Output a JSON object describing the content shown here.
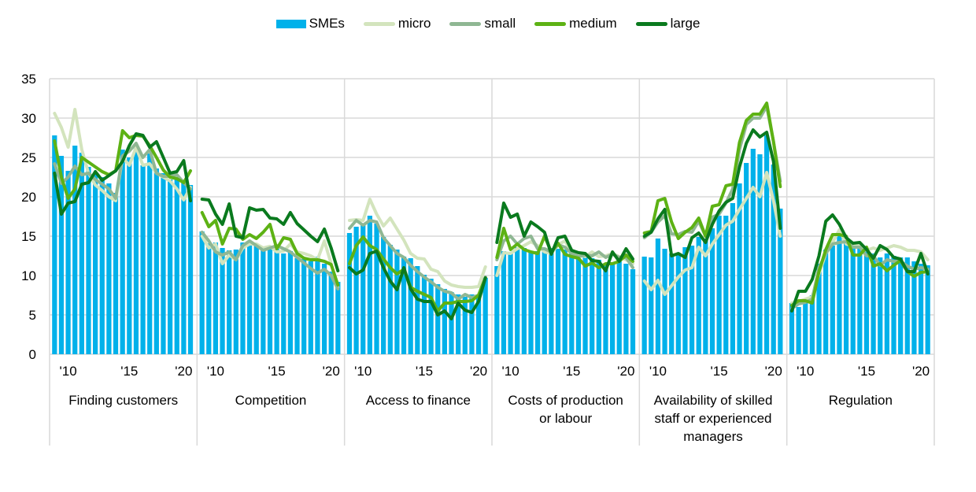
{
  "chart_data": {
    "type": "bar",
    "title": "",
    "xlabel": "",
    "ylabel": "",
    "ylim": [
      0,
      35
    ],
    "yticks": [
      "0",
      "5",
      "10",
      "15",
      "20",
      "25",
      "30",
      "35"
    ],
    "grid": true,
    "legend_position": "top",
    "colors": {
      "SMEs": "#00b1ea",
      "micro": "#d3e4bd",
      "small": "#8fb793",
      "medium": "#5db214",
      "large": "#0a7a1e",
      "grid": "#d9d9d9"
    },
    "legend": [
      {
        "name": "SMEs",
        "kind": "bar"
      },
      {
        "name": "micro",
        "kind": "line"
      },
      {
        "name": "small",
        "kind": "line"
      },
      {
        "name": "medium",
        "kind": "line"
      },
      {
        "name": "large",
        "kind": "line"
      }
    ],
    "x_tick_labels": [
      "'10",
      "'15",
      "'20"
    ],
    "panels": [
      {
        "label_lines": [
          "Finding customers"
        ],
        "series": {
          "SMEs": [
            27.8,
            25.2,
            23.3,
            26.5,
            25.6,
            23.8,
            23.0,
            22.5,
            21.7,
            20.5,
            26.0,
            25.0,
            26.5,
            24.0,
            25.5,
            23.6,
            23.0,
            22.2,
            22.5,
            21.8,
            21.5
          ],
          "micro": [
            30.6,
            28.8,
            26.3,
            31.1,
            26.0,
            23.0,
            21.5,
            20.8,
            20.0,
            19.5,
            25.0,
            24.0,
            26.3,
            24.0,
            24.2,
            23.0,
            22.5,
            22.0,
            21.0,
            19.6,
            21.2
          ],
          "small": [
            24.2,
            21.7,
            22.5,
            23.9,
            22.8,
            23.0,
            22.2,
            21.6,
            21.0,
            19.8,
            25.2,
            25.8,
            26.8,
            25.0,
            26.0,
            23.0,
            22.6,
            22.6,
            22.8,
            21.8,
            21.0
          ],
          "medium": [
            27.1,
            22.5,
            19.8,
            21.0,
            25.0,
            24.4,
            23.8,
            23.2,
            22.8,
            23.3,
            28.4,
            27.5,
            27.8,
            27.7,
            26.5,
            25.0,
            23.4,
            22.5,
            22.3,
            21.8,
            23.3
          ],
          "large": [
            23.0,
            17.8,
            19.2,
            19.4,
            21.6,
            21.8,
            23.2,
            22.1,
            22.7,
            23.3,
            24.5,
            26.5,
            28.0,
            27.8,
            26.3,
            27.0,
            25.0,
            23.0,
            23.2,
            24.6,
            19.5
          ]
        }
      },
      {
        "label_lines": [
          "Competition"
        ],
        "series": {
          "SMEs": [
            15.6,
            14.1,
            14.2,
            13.5,
            13.2,
            13.3,
            14.2,
            14.0,
            13.9,
            13.3,
            13.8,
            13.4,
            12.8,
            13.1,
            12.2,
            12.1,
            11.8,
            12.4,
            11.5,
            10.5,
            9.2
          ],
          "micro": [
            15.0,
            13.5,
            14.0,
            11.5,
            12.6,
            12.0,
            13.5,
            14.0,
            14.0,
            13.5,
            13.7,
            13.0,
            13.1,
            14.0,
            13.0,
            12.8,
            12.5,
            12.0,
            14.4,
            11.5,
            8.5
          ],
          "small": [
            15.5,
            14.4,
            13.0,
            12.6,
            13.0,
            12.0,
            13.8,
            14.4,
            13.8,
            13.2,
            13.5,
            13.8,
            13.4,
            13.0,
            12.3,
            11.6,
            10.9,
            10.3,
            10.8,
            10.0,
            8.3
          ],
          "medium": [
            18.0,
            16.2,
            17.0,
            14.0,
            16.0,
            15.9,
            14.6,
            15.2,
            14.7,
            15.5,
            16.5,
            13.4,
            14.8,
            14.6,
            12.8,
            12.2,
            12.0,
            12.0,
            11.8,
            11.4,
            8.8
          ],
          "large": [
            19.7,
            19.6,
            17.8,
            16.5,
            19.1,
            15.0,
            14.8,
            18.6,
            18.3,
            18.4,
            17.3,
            17.2,
            16.5,
            18.0,
            16.6,
            15.8,
            15.0,
            14.3,
            15.9,
            13.5,
            10.6
          ]
        }
      },
      {
        "label_lines": [
          "Access to finance"
        ],
        "series": {
          "SMEs": [
            15.4,
            16.2,
            16.6,
            17.6,
            16.6,
            14.9,
            13.9,
            13.3,
            12.4,
            12.2,
            11.2,
            10.1,
            9.6,
            8.9,
            8.3,
            7.9,
            7.6,
            7.3,
            7.6,
            7.4,
            9.7
          ],
          "micro": [
            17.0,
            17.1,
            17.0,
            19.7,
            17.8,
            16.3,
            17.3,
            15.9,
            14.5,
            12.8,
            12.2,
            12.1,
            10.8,
            10.5,
            9.3,
            8.8,
            8.6,
            8.5,
            8.5,
            8.6,
            11.1
          ],
          "small": [
            16.0,
            17.0,
            16.4,
            17.0,
            16.8,
            14.8,
            13.8,
            12.8,
            12.3,
            11.3,
            10.5,
            9.8,
            9.2,
            8.5,
            8.0,
            7.8,
            7.0,
            7.6,
            7.2,
            7.5,
            9.8
          ],
          "medium": [
            11.5,
            13.8,
            14.9,
            13.8,
            13.3,
            12.1,
            11.0,
            10.2,
            10.8,
            8.5,
            8.0,
            7.6,
            7.2,
            5.5,
            6.5,
            6.5,
            6.7,
            6.7,
            6.8,
            7.5,
            9.7
          ],
          "large": [
            11.0,
            10.2,
            10.7,
            12.8,
            13.1,
            11.0,
            9.3,
            8.2,
            11.0,
            8.3,
            7.0,
            6.7,
            6.7,
            5.0,
            5.5,
            4.5,
            6.5,
            5.6,
            5.3,
            6.7,
            9.7
          ]
        }
      },
      {
        "label_lines": [
          "Costs of production",
          "or labour"
        ],
        "series": {
          "SMEs": [
            11.2,
            13.1,
            12.8,
            13.6,
            13.5,
            13.1,
            13.1,
            13.4,
            13.5,
            13.4,
            13.3,
            12.8,
            12.2,
            12.3,
            12.2,
            12.0,
            11.5,
            11.5,
            12.2,
            11.5,
            10.8
          ],
          "micro": [
            10.0,
            12.9,
            12.8,
            13.4,
            13.8,
            14.3,
            13.8,
            13.0,
            12.8,
            13.9,
            14.4,
            13.0,
            12.7,
            12.4,
            13.0,
            12.4,
            12.5,
            12.8,
            12.4,
            12.0,
            11.5
          ],
          "small": [
            12.0,
            14.4,
            15.0,
            14.0,
            14.7,
            15.0,
            13.4,
            13.4,
            13.0,
            13.9,
            13.6,
            12.8,
            12.4,
            12.6,
            12.5,
            13.0,
            12.3,
            12.7,
            12.3,
            12.3,
            11.0
          ],
          "medium": [
            12.3,
            16.0,
            13.3,
            14.0,
            13.3,
            13.0,
            12.8,
            15.0,
            13.0,
            14.1,
            12.7,
            12.4,
            12.2,
            11.2,
            11.6,
            11.0,
            11.5,
            11.5,
            11.8,
            12.6,
            11.8
          ],
          "large": [
            14.2,
            19.2,
            17.4,
            17.8,
            15.0,
            16.8,
            16.2,
            15.5,
            12.7,
            14.8,
            15.0,
            13.2,
            12.9,
            12.8,
            11.9,
            11.8,
            10.6,
            13.0,
            11.8,
            13.4,
            12.1
          ]
        }
      },
      {
        "label_lines": [
          "Availability of skilled",
          "staff or experienced",
          "managers"
        ],
        "series": {
          "SMEs": [
            12.4,
            12.3,
            14.7,
            13.4,
            12.8,
            12.7,
            13.6,
            13.8,
            14.9,
            14.7,
            16.0,
            17.6,
            17.6,
            19.2,
            21.7,
            24.3,
            26.1,
            25.4,
            27.8,
            24.1,
            18.5
          ],
          "micro": [
            9.3,
            8.2,
            9.4,
            7.6,
            8.7,
            9.8,
            10.7,
            11.0,
            13.6,
            12.5,
            14.0,
            15.2,
            16.4,
            16.9,
            18.4,
            19.8,
            21.2,
            20.0,
            23.1,
            19.5,
            15.0
          ],
          "small": [
            14.8,
            15.5,
            16.8,
            17.6,
            15.3,
            15.2,
            15.6,
            15.5,
            16.9,
            15.0,
            17.4,
            17.8,
            19.2,
            21.0,
            26.0,
            29.2,
            30.0,
            30.0,
            31.5,
            27.0,
            22.0
          ],
          "medium": [
            15.4,
            15.6,
            19.5,
            19.8,
            16.8,
            14.7,
            15.5,
            16.1,
            17.3,
            15.0,
            18.8,
            19.0,
            21.4,
            21.6,
            26.9,
            29.7,
            30.5,
            30.5,
            31.9,
            27.0,
            21.3
          ],
          "large": [
            15.0,
            15.5,
            17.2,
            18.4,
            12.5,
            12.8,
            12.3,
            14.8,
            15.4,
            14.2,
            16.5,
            18.2,
            19.3,
            19.8,
            23.8,
            26.8,
            28.5,
            27.6,
            28.2,
            24.5,
            16.0
          ]
        }
      },
      {
        "label_lines": [
          "Regulation"
        ],
        "series": {
          "SMEs": [
            6.5,
            6.0,
            6.5,
            7.5,
            11.5,
            13.3,
            13.8,
            15.0,
            14.2,
            13.6,
            13.5,
            13.1,
            12.8,
            12.3,
            12.8,
            12.5,
            12.3,
            12.3,
            11.8,
            11.5,
            11.3
          ],
          "micro": [
            6.5,
            6.7,
            7.0,
            7.3,
            10.2,
            12.8,
            14.2,
            15.8,
            14.0,
            13.7,
            14.0,
            13.2,
            13.5,
            13.2,
            13.5,
            13.8,
            13.6,
            13.2,
            13.2,
            13.0,
            12.0
          ],
          "small": [
            5.8,
            6.4,
            6.6,
            7.0,
            11.0,
            12.8,
            14.0,
            14.2,
            14.3,
            13.6,
            13.6,
            12.5,
            12.5,
            11.3,
            12.0,
            11.8,
            11.8,
            11.2,
            10.8,
            11.0,
            10.8
          ],
          "medium": [
            6.2,
            6.8,
            6.8,
            6.5,
            10.5,
            13.3,
            15.2,
            15.2,
            15.0,
            12.6,
            12.6,
            13.6,
            11.2,
            11.5,
            10.6,
            11.3,
            11.9,
            10.5,
            9.9,
            10.4,
            10.5
          ],
          "large": [
            5.5,
            8.0,
            8.0,
            9.5,
            12.5,
            16.9,
            17.7,
            16.5,
            14.8,
            14.1,
            14.2,
            13.3,
            12.2,
            13.8,
            13.3,
            12.3,
            12.1,
            10.5,
            10.5,
            12.8,
            10.2
          ]
        }
      }
    ]
  }
}
